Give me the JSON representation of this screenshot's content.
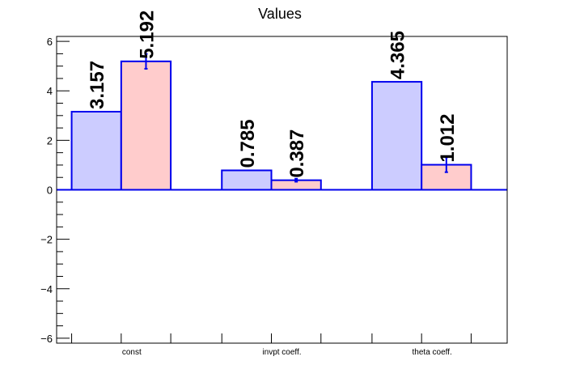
{
  "chart_data": {
    "type": "bar",
    "title": "Values",
    "categories": [
      "const",
      "invpt coeff.",
      "theta coeff."
    ],
    "series": [
      {
        "values": [
          3.157,
          0.785,
          4.365
        ],
        "errors": [
          0.0,
          0.0,
          0.0
        ],
        "labels": [
          "3.157",
          "0.785",
          "4.365"
        ],
        "fill": "#ccccff",
        "stroke": "#0000ee"
      },
      {
        "values": [
          5.192,
          0.387,
          1.012
        ],
        "errors": [
          0.3,
          0.06,
          0.3
        ],
        "labels": [
          "5.192",
          "0.387",
          "1.012"
        ],
        "fill": "#ffcccc",
        "stroke": "#0000ee"
      }
    ],
    "ylim": [
      -6.2,
      6.2
    ],
    "yticks": [
      -6,
      -4,
      -2,
      0,
      2,
      4,
      6
    ],
    "ytick_labels": [
      "−6",
      "−4",
      "−2",
      "0",
      "2",
      "4",
      "6"
    ],
    "grid": false,
    "legend": "none",
    "xlabel": "",
    "ylabel": ""
  }
}
